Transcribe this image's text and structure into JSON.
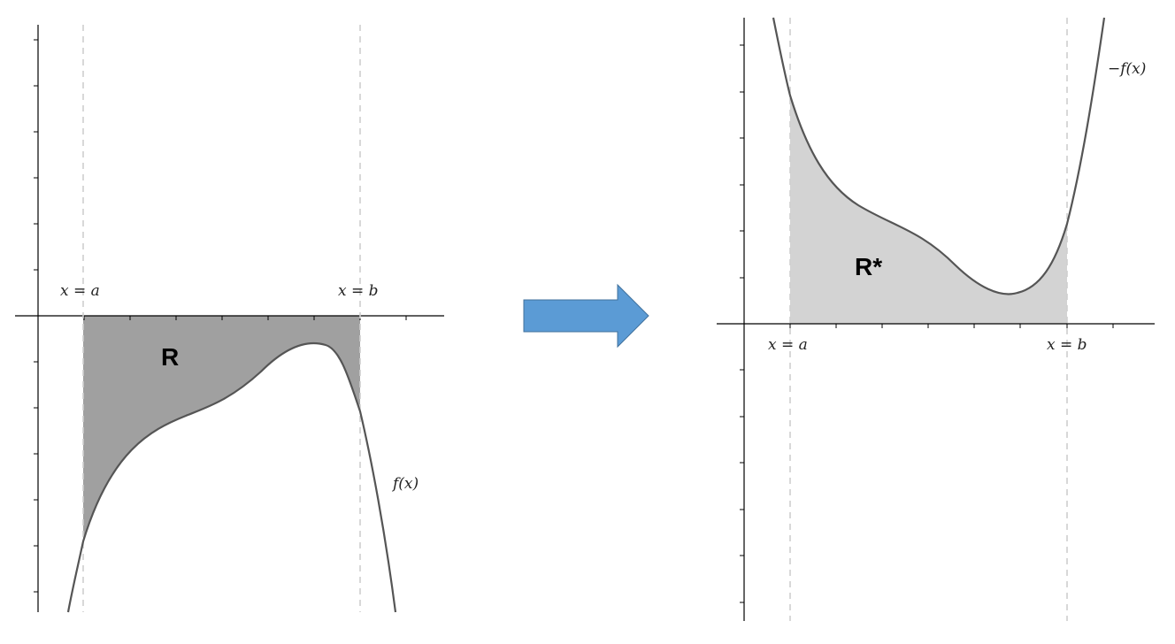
{
  "left_panel": {
    "label_left_line": "x = a",
    "label_right_line": "x = b",
    "region_label": "R",
    "curve_label": "f(x)",
    "region_color": "#a0a0a0"
  },
  "right_panel": {
    "label_left_line": "x = a",
    "label_right_line": "x = b",
    "region_label": "R*",
    "curve_label": "−f(x)",
    "region_color": "#d3d3d3"
  },
  "arrow": {
    "color": "#5b9bd5",
    "border_color": "#41719c",
    "direction": "right"
  }
}
